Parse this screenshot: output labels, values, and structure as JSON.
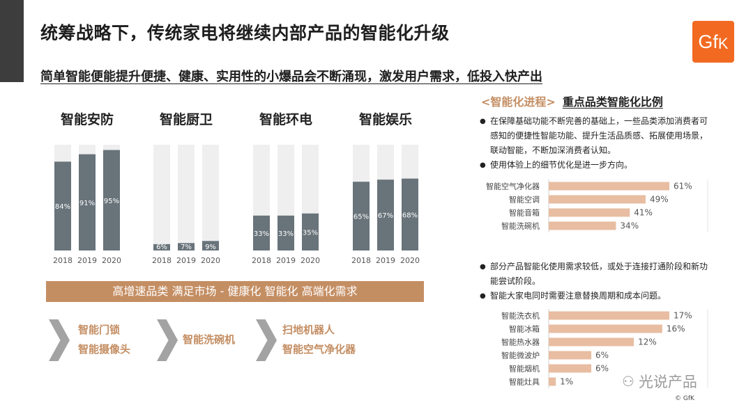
{
  "header": {
    "title": "统筹战略下，传统家电将继续内部产品的智能化升级",
    "subtitle": "简单智能便能提升便捷、健康、实用性的小爆品会不断涌现，激发用户需求，低投入快产出"
  },
  "logo": {
    "text": "GfK",
    "color": "#f26a21"
  },
  "colors": {
    "accent": "#c48e63",
    "bar_dark": "#68737a",
    "bar_bg": "#efefef",
    "hbar": "#e8bda1",
    "chevron": "#a3a3a3"
  },
  "chart_data": [
    {
      "type": "bar",
      "groups": [
        {
          "name": "智能安防",
          "categories": [
            "2018",
            "2019",
            "2020"
          ],
          "values": [
            84,
            91,
            95
          ]
        },
        {
          "name": "智能厨卫",
          "categories": [
            "2018",
            "2019",
            "2020"
          ],
          "values": [
            6,
            7,
            9
          ]
        },
        {
          "name": "智能环电",
          "categories": [
            "2018",
            "2019",
            "2020"
          ],
          "values": [
            33,
            33,
            35
          ]
        },
        {
          "name": "智能娱乐",
          "categories": [
            "2018",
            "2019",
            "2020"
          ],
          "values": [
            65,
            67,
            68
          ]
        }
      ],
      "value_suffix": "%",
      "ylim": [
        0,
        100
      ]
    },
    {
      "type": "bar",
      "orientation": "horizontal",
      "categories": [
        "智能空气净化器",
        "智能空调",
        "智能音箱",
        "智能洗碗机"
      ],
      "values": [
        61,
        49,
        41,
        34
      ],
      "value_suffix": "%"
    },
    {
      "type": "bar",
      "orientation": "horizontal",
      "categories": [
        "智能洗衣机",
        "智能冰箱",
        "智能热水器",
        "智能微波炉",
        "智能烟机",
        "智能灶具"
      ],
      "values": [
        17,
        16,
        12,
        6,
        6,
        1
      ],
      "value_suffix": "%"
    }
  ],
  "banner": {
    "text": "高增速品类  满足市场 - 健康化 智能化 高端化需求"
  },
  "examples": [
    {
      "lines": [
        "智能门锁",
        "智能摄像头"
      ]
    },
    {
      "lines": [
        "智能洗碗机"
      ]
    },
    {
      "lines": [
        "扫地机器人",
        "智能空气净化器"
      ]
    }
  ],
  "right": {
    "tag": "<智能化进程>",
    "title": "重点品类智能化比例",
    "bullets_top": [
      "在保障基础功能不断完善的基础上，一些品类添加消费者可感知的便捷性智能功能、提升生活品质感、拓展使用场景，联动智能，不断加深消费者认知。",
      "使用体验上的细节优化是进一步方向。"
    ],
    "bullets_bottom": [
      "部分产品智能化使用需求较低，或处于连接打通阶段和新功能尝试阶段。",
      "智能大家电同时需要注意替换周期和成本问题。"
    ]
  },
  "watermark": {
    "text": "光说产品",
    "icon": "wechat-icon"
  },
  "copyright": "© GfK"
}
